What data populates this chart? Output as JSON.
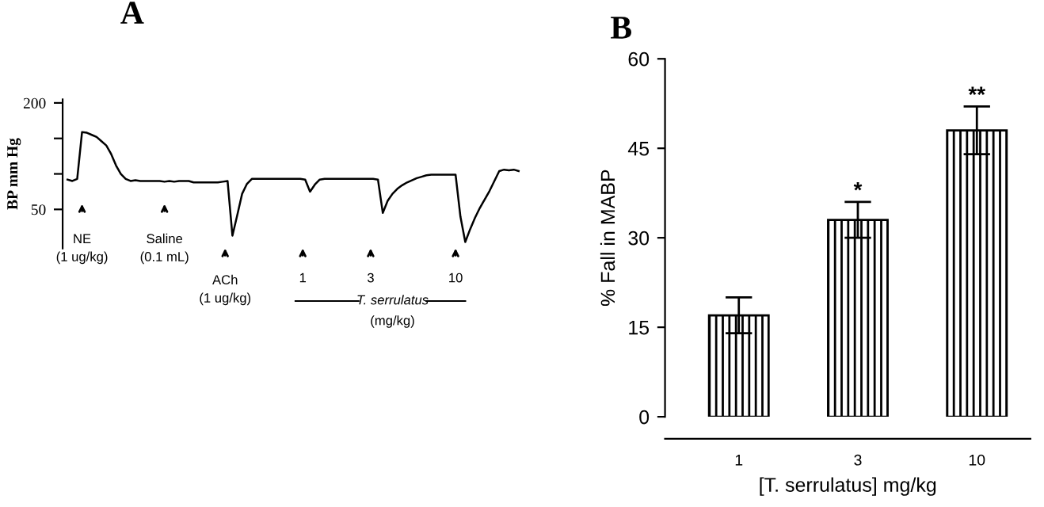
{
  "chart_data": [
    {
      "type": "line",
      "title": "A",
      "ylabel": "BP mm Hg",
      "categories": [
        null,
        null,
        null,
        null,
        null,
        null,
        null,
        null,
        null,
        null,
        null,
        null,
        null,
        null,
        null,
        null,
        null,
        null,
        null,
        null,
        null,
        null,
        null,
        null,
        null,
        null,
        null,
        null,
        null,
        null,
        null,
        null,
        null,
        null,
        null,
        null,
        null,
        null,
        null,
        null,
        null,
        null,
        null,
        null,
        null,
        null,
        null,
        null,
        null,
        null,
        null,
        null,
        null,
        null,
        null,
        null,
        null,
        null,
        null,
        null,
        null,
        null,
        null,
        null,
        null,
        null,
        null,
        null,
        null,
        null,
        null,
        null,
        null,
        null,
        null,
        null,
        null,
        null,
        null,
        null,
        null,
        null,
        null,
        null,
        null,
        null,
        null,
        null,
        null,
        null,
        null,
        null,
        null,
        null
      ],
      "series": [
        {
          "color": "#000000",
          "values": [
            92,
            90,
            93,
            159,
            158,
            155,
            152,
            146,
            140,
            128,
            112,
            100,
            93,
            90,
            91,
            90,
            90,
            90,
            90,
            90,
            89,
            90,
            89,
            90,
            90,
            90,
            88,
            88,
            88,
            88,
            88,
            88,
            89,
            90,
            13,
            42,
            72,
            86,
            93,
            93,
            93,
            93,
            93,
            93,
            93,
            93,
            93,
            93,
            93,
            92,
            75,
            85,
            92,
            93,
            93,
            93,
            93,
            93,
            93,
            93,
            93,
            93,
            93,
            93,
            92,
            45,
            62,
            72,
            79,
            84,
            88,
            91,
            94,
            96,
            98,
            99,
            99,
            99,
            99,
            99,
            99,
            40,
            4,
            22,
            38,
            52,
            64,
            76,
            90,
            104,
            106,
            105,
            106,
            104
          ]
        }
      ],
      "ylim": [
        -5,
        205
      ],
      "yticks": [
        50,
        {
          "value": 100,
          "label": null
        },
        {
          "value": 150,
          "label": null
        },
        200
      ],
      "tick_labels": "y",
      "grid": false,
      "legend": false,
      "marker": "none",
      "line_style": "solid",
      "annotations": [
        "NE\n(1 ug/kg)",
        "Saline\n(0.1 mL)",
        "ACh\n(1 ug/kg)",
        "1",
        "3",
        "10",
        "T. serrulatus",
        "(mg/kg)"
      ]
    },
    {
      "type": "bar",
      "title": "B",
      "xlabel": "[T. serrulatus] mg/kg",
      "ylabel": "% Fall in MABP",
      "categories": [
        "1",
        "3",
        "10"
      ],
      "series": [
        {
          "color": "#000000",
          "values": [
            17,
            33,
            48
          ],
          "errors": [
            3,
            3,
            4
          ]
        }
      ],
      "ylim": [
        0,
        60
      ],
      "yticks": [
        0,
        15,
        30,
        45,
        60
      ],
      "grid": false,
      "legend": false,
      "annotations": [
        {
          "text": "*",
          "x": "3",
          "y": 36
        },
        {
          "text": "**",
          "x": "10",
          "y": 52
        }
      ]
    }
  ]
}
